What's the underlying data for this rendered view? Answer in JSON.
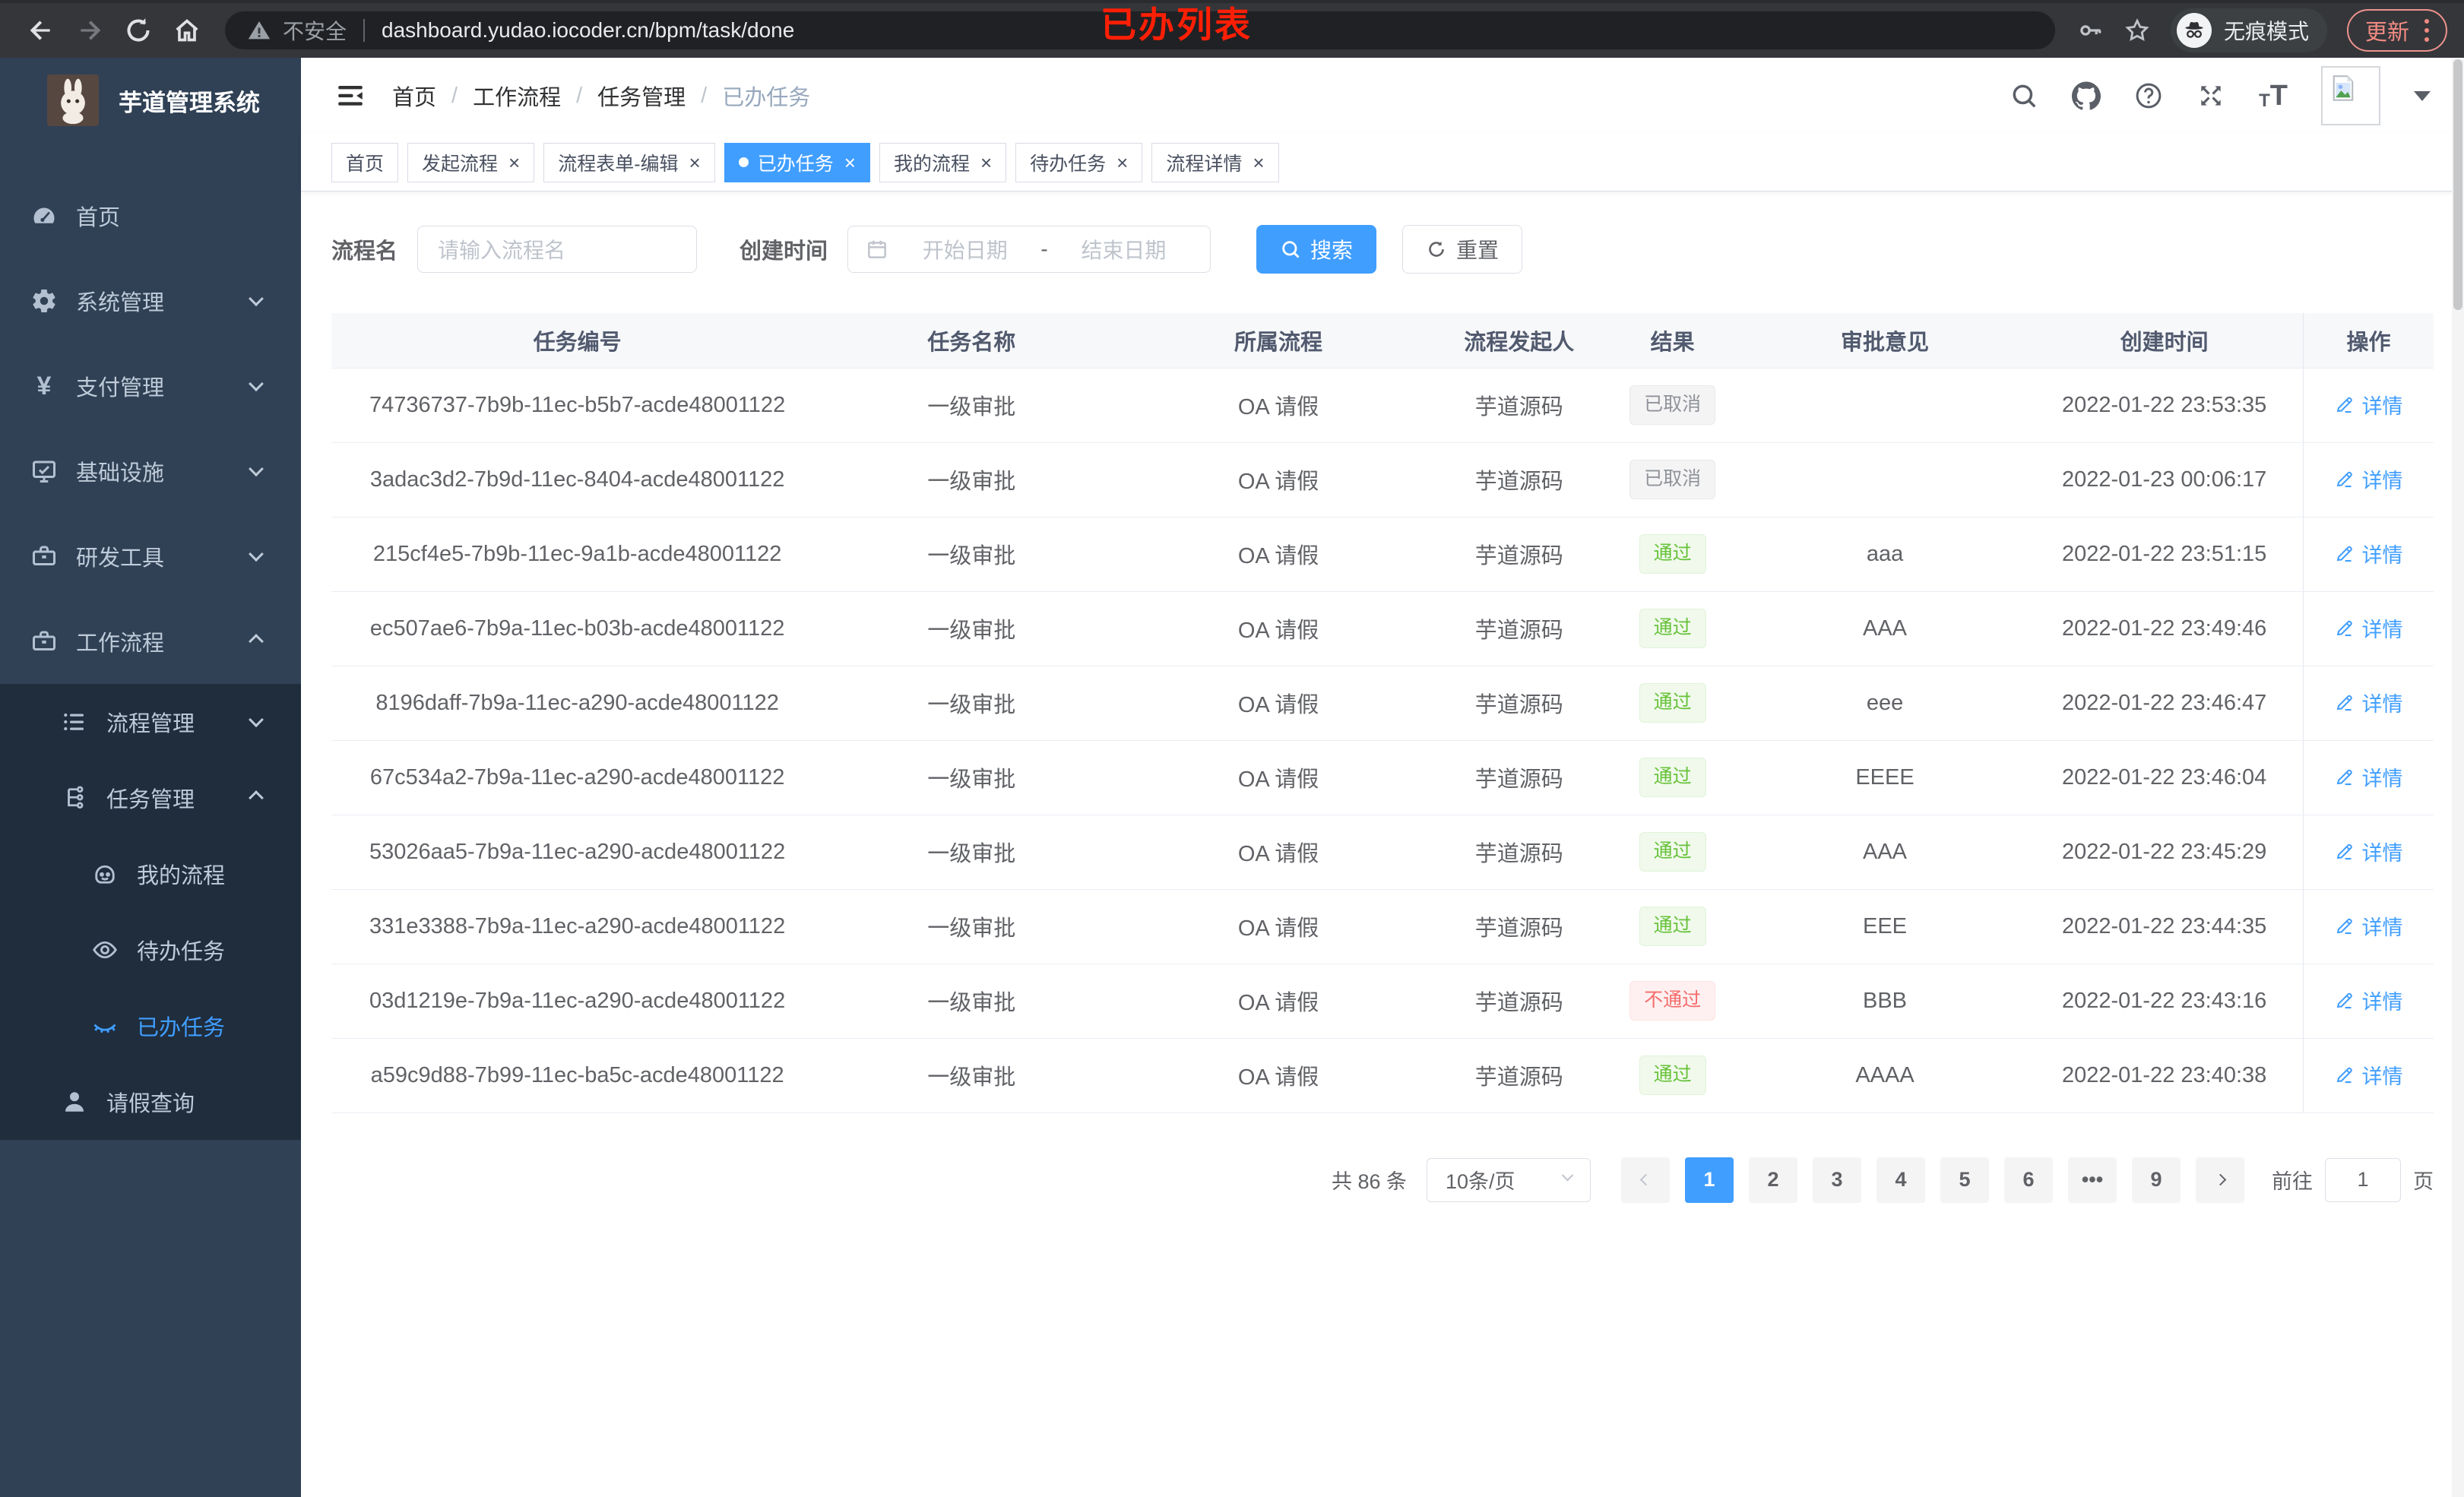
{
  "colors": {
    "accent": "#409eff",
    "success": "#67c23a",
    "danger": "#f56c6c",
    "info": "#909399",
    "sidebar_bg": "#304156",
    "submenu_bg": "#1f2d3d",
    "annotation": "#ff1f05"
  },
  "browser": {
    "security_label": "不安全",
    "url": "dashboard.yudao.iocoder.cn/bpm/task/done",
    "incognito_label": "无痕模式",
    "update_label": "更新",
    "annotation": "已办列表"
  },
  "sidebar": {
    "app_title": "芋道管理系统",
    "menu": [
      {
        "name": "home",
        "icon": "dashboard",
        "label": "首页",
        "level": 1
      },
      {
        "name": "system-mgmt",
        "icon": "gear",
        "label": "系统管理",
        "level": 1,
        "chevron": "down"
      },
      {
        "name": "payment-mgmt",
        "icon": "yen",
        "label": "支付管理",
        "level": 1,
        "chevron": "down"
      },
      {
        "name": "infrastructure",
        "icon": "monitor",
        "label": "基础设施",
        "level": 1,
        "chevron": "down"
      },
      {
        "name": "dev-tools",
        "icon": "toolbox",
        "label": "研发工具",
        "level": 1,
        "chevron": "down"
      },
      {
        "name": "workflow",
        "icon": "toolbox",
        "label": "工作流程",
        "level": 1,
        "chevron": "up"
      },
      {
        "name": "process-mgmt",
        "icon": "list",
        "label": "流程管理",
        "level": 2,
        "chevron": "down"
      },
      {
        "name": "task-mgmt",
        "icon": "tree",
        "label": "任务管理",
        "level": 2,
        "chevron": "up"
      },
      {
        "name": "my-process",
        "icon": "robot",
        "label": "我的流程",
        "level": 3
      },
      {
        "name": "todo-tasks",
        "icon": "eye",
        "label": "待办任务",
        "level": 3
      },
      {
        "name": "done-tasks",
        "icon": "eye-closed",
        "label": "已办任务",
        "level": 3,
        "active": true
      },
      {
        "name": "leave-query",
        "icon": "user",
        "label": "请假查询",
        "level": 2
      }
    ]
  },
  "breadcrumb": [
    "首页",
    "工作流程",
    "任务管理",
    "已办任务"
  ],
  "tabs": [
    {
      "name": "home",
      "label": "首页",
      "closable": false,
      "active": false
    },
    {
      "name": "start-process",
      "label": "发起流程",
      "closable": true,
      "active": false
    },
    {
      "name": "process-form-edit",
      "label": "流程表单-编辑",
      "closable": true,
      "active": false
    },
    {
      "name": "done-tasks",
      "label": "已办任务",
      "closable": true,
      "active": true
    },
    {
      "name": "my-process",
      "label": "我的流程",
      "closable": true,
      "active": false
    },
    {
      "name": "todo-tasks",
      "label": "待办任务",
      "closable": true,
      "active": false
    },
    {
      "name": "process-detail",
      "label": "流程详情",
      "closable": true,
      "active": false
    }
  ],
  "filters": {
    "name_label": "流程名",
    "name_placeholder": "请输入流程名",
    "time_label": "创建时间",
    "start_placeholder": "开始日期",
    "range_separator": "-",
    "end_placeholder": "结束日期",
    "search_label": "搜索",
    "reset_label": "重置"
  },
  "table": {
    "columns": [
      "任务编号",
      "任务名称",
      "所属流程",
      "流程发起人",
      "结果",
      "审批意见",
      "创建时间",
      "操作"
    ],
    "detail_label": "详情",
    "rows": [
      {
        "id": "74736737-7b9b-11ec-b5b7-acde48001122",
        "name": "一级审批",
        "process": "OA 请假",
        "starter": "芋道源码",
        "result": "已取消",
        "result_type": "info",
        "comment": "",
        "created": "2022-01-22 23:53:35"
      },
      {
        "id": "3adac3d2-7b9d-11ec-8404-acde48001122",
        "name": "一级审批",
        "process": "OA 请假",
        "starter": "芋道源码",
        "result": "已取消",
        "result_type": "info",
        "comment": "",
        "created": "2022-01-23 00:06:17"
      },
      {
        "id": "215cf4e5-7b9b-11ec-9a1b-acde48001122",
        "name": "一级审批",
        "process": "OA 请假",
        "starter": "芋道源码",
        "result": "通过",
        "result_type": "success",
        "comment": "aaa",
        "created": "2022-01-22 23:51:15"
      },
      {
        "id": "ec507ae6-7b9a-11ec-b03b-acde48001122",
        "name": "一级审批",
        "process": "OA 请假",
        "starter": "芋道源码",
        "result": "通过",
        "result_type": "success",
        "comment": "AAA",
        "created": "2022-01-22 23:49:46"
      },
      {
        "id": "8196daff-7b9a-11ec-a290-acde48001122",
        "name": "一级审批",
        "process": "OA 请假",
        "starter": "芋道源码",
        "result": "通过",
        "result_type": "success",
        "comment": "eee",
        "created": "2022-01-22 23:46:47"
      },
      {
        "id": "67c534a2-7b9a-11ec-a290-acde48001122",
        "name": "一级审批",
        "process": "OA 请假",
        "starter": "芋道源码",
        "result": "通过",
        "result_type": "success",
        "comment": "EEEE",
        "created": "2022-01-22 23:46:04"
      },
      {
        "id": "53026aa5-7b9a-11ec-a290-acde48001122",
        "name": "一级审批",
        "process": "OA 请假",
        "starter": "芋道源码",
        "result": "通过",
        "result_type": "success",
        "comment": "AAA",
        "created": "2022-01-22 23:45:29"
      },
      {
        "id": "331e3388-7b9a-11ec-a290-acde48001122",
        "name": "一级审批",
        "process": "OA 请假",
        "starter": "芋道源码",
        "result": "通过",
        "result_type": "success",
        "comment": "EEE",
        "created": "2022-01-22 23:44:35"
      },
      {
        "id": "03d1219e-7b9a-11ec-a290-acde48001122",
        "name": "一级审批",
        "process": "OA 请假",
        "starter": "芋道源码",
        "result": "不通过",
        "result_type": "danger",
        "comment": "BBB",
        "created": "2022-01-22 23:43:16"
      },
      {
        "id": "a59c9d88-7b99-11ec-ba5c-acde48001122",
        "name": "一级审批",
        "process": "OA 请假",
        "starter": "芋道源码",
        "result": "通过",
        "result_type": "success",
        "comment": "AAAA",
        "created": "2022-01-22 23:40:38"
      }
    ]
  },
  "pagination": {
    "total_label": "共 86 条",
    "page_size_label": "10条/页",
    "pages": [
      "1",
      "2",
      "3",
      "4",
      "5",
      "6",
      "•••",
      "9"
    ],
    "active_page": "1",
    "goto_label": "前往",
    "goto_value": "1",
    "goto_suffix": "页"
  }
}
